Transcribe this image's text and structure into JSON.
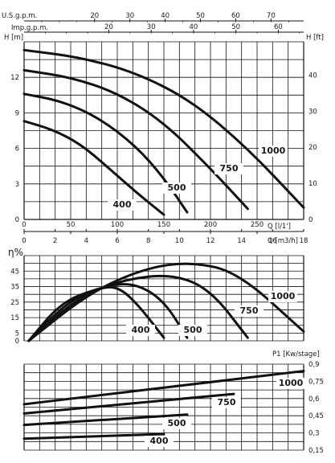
{
  "chart_data": [
    {
      "type": "line",
      "unit_labels": {
        "us_gpm": "U.S.g.p.m.",
        "imp_gpm": "Imp.g.p.m.",
        "head_m": "H [m]",
        "head_ft": "H [ft]",
        "flow_lmin": "Q [l/1']",
        "flow_m3h": "Q [m3/h]"
      },
      "ticks": {
        "us_gpm": [
          "20",
          "30",
          "40",
          "50",
          "60",
          "70"
        ],
        "imp_gpm": [
          "20",
          "30",
          "40",
          "50",
          "60"
        ],
        "head_m": [
          "0",
          "3",
          "6",
          "9",
          "12"
        ],
        "head_ft": [
          "0",
          "10",
          "20",
          "30",
          "40"
        ],
        "flow_lmin": [
          "0",
          "50",
          "100",
          "150",
          "200",
          "250"
        ],
        "flow_m3h": [
          "0",
          "2",
          "4",
          "6",
          "8",
          "10",
          "12",
          "14",
          "16",
          "18"
        ]
      },
      "xlim": [
        0,
        300
      ],
      "ylim": [
        0,
        15
      ],
      "series": [
        {
          "name": "400",
          "x": [
            0,
            30,
            60,
            90,
            120,
            150
          ],
          "y": [
            8.3,
            7.6,
            6.4,
            4.4,
            2.3,
            0.4
          ]
        },
        {
          "name": "500",
          "x": [
            0,
            40,
            80,
            120,
            150,
            175
          ],
          "y": [
            10.6,
            10.0,
            8.6,
            6.2,
            3.5,
            0.6
          ]
        },
        {
          "name": "750",
          "x": [
            0,
            50,
            100,
            150,
            200,
            240
          ],
          "y": [
            12.6,
            12.0,
            10.7,
            8.2,
            4.3,
            0.9
          ]
        },
        {
          "name": "1000",
          "x": [
            0,
            60,
            120,
            180,
            240,
            300
          ],
          "y": [
            14.3,
            13.7,
            12.4,
            10.0,
            6.0,
            1.0
          ]
        }
      ]
    },
    {
      "type": "line",
      "ylabel": "η%",
      "ticks_y": [
        "0",
        "5",
        "15",
        "25",
        "35",
        "45"
      ],
      "xlim": [
        0,
        300
      ],
      "ylim": [
        0,
        55
      ],
      "series": [
        {
          "name": "400",
          "x": [
            5,
            40,
            80,
            100,
            120,
            150
          ],
          "y": [
            0,
            25,
            34,
            35,
            25,
            2
          ]
        },
        {
          "name": "500",
          "x": [
            5,
            50,
            90,
            120,
            150,
            175
          ],
          "y": [
            0,
            27,
            36,
            37,
            26,
            2
          ]
        },
        {
          "name": "750",
          "x": [
            5,
            60,
            110,
            160,
            200,
            240
          ],
          "y": [
            0,
            29,
            40,
            43,
            33,
            2
          ]
        },
        {
          "name": "1000",
          "x": [
            5,
            70,
            130,
            180,
            230,
            300
          ],
          "y": [
            0,
            31,
            47,
            51,
            44,
            6
          ]
        }
      ]
    },
    {
      "type": "line",
      "ylabel": "P1 [Kw/stage]",
      "ticks_y": [
        "0,15",
        "0,3",
        "0,45",
        "0,6",
        "0,75",
        "0,9"
      ],
      "xlim": [
        0,
        300
      ],
      "ylim": [
        0.15,
        0.9
      ],
      "series": [
        {
          "name": "400",
          "x": [
            0,
            150
          ],
          "y": [
            0.25,
            0.29
          ]
        },
        {
          "name": "500",
          "x": [
            0,
            175
          ],
          "y": [
            0.37,
            0.46
          ]
        },
        {
          "name": "750",
          "x": [
            0,
            225
          ],
          "y": [
            0.47,
            0.64
          ]
        },
        {
          "name": "1000",
          "x": [
            0,
            300
          ],
          "y": [
            0.55,
            0.84
          ]
        }
      ]
    }
  ]
}
